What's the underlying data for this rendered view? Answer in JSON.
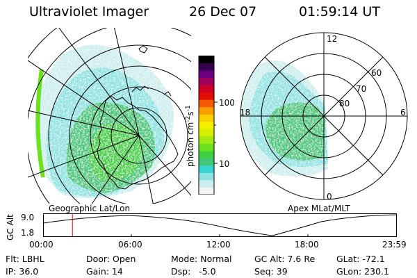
{
  "header": {
    "instrument": "Ultraviolet Imager",
    "date": "26 Dec 07",
    "time": "01:59:14 UT"
  },
  "left_panel": {
    "label": "Geographic Lat/Lon"
  },
  "right_panel": {
    "label": "Apex MLat/MLT",
    "mlt_labels": [
      "12",
      "18",
      "6",
      "0"
    ],
    "mlat_labels": [
      "60",
      "70",
      "80"
    ]
  },
  "colorbar": {
    "unit_label": "photon cm",
    "unit_exp1": "-2",
    "unit_s": "s",
    "unit_exp2": "-1",
    "ticks": [
      "100",
      "10"
    ],
    "colors": [
      "#f4f4f4",
      "#cdeeee",
      "#8fe2e2",
      "#3ad3d3",
      "#42c77a",
      "#3fd041",
      "#6ee11e",
      "#a3ea12",
      "#d7f001",
      "#f5f000",
      "#fbce00",
      "#fb9d00",
      "#f45a00",
      "#e20f00",
      "#cc0028",
      "#9f005c",
      "#6b007e",
      "#35004d",
      "#000000"
    ]
  },
  "altitude_plot": {
    "ylabel": "GC Alt",
    "y_ticks": [
      "9.0",
      "1.8"
    ],
    "x_ticks": [
      "00:00",
      "06:00",
      "12:00",
      "18:00",
      "23:59"
    ],
    "current_time_fraction": 0.083
  },
  "info": {
    "col1": [
      "Flt: LBHL",
      "IP: 36.0"
    ],
    "col2": [
      "Door: Open",
      "Gain: 14"
    ],
    "col3": [
      "Mode: Normal",
      "Dsp:   -5.0"
    ],
    "col4": [
      "GC Alt: 7.6 Re",
      "Seq: 39"
    ],
    "col5": [
      "GLat: -72.1",
      "GLon: 230.1"
    ]
  }
}
